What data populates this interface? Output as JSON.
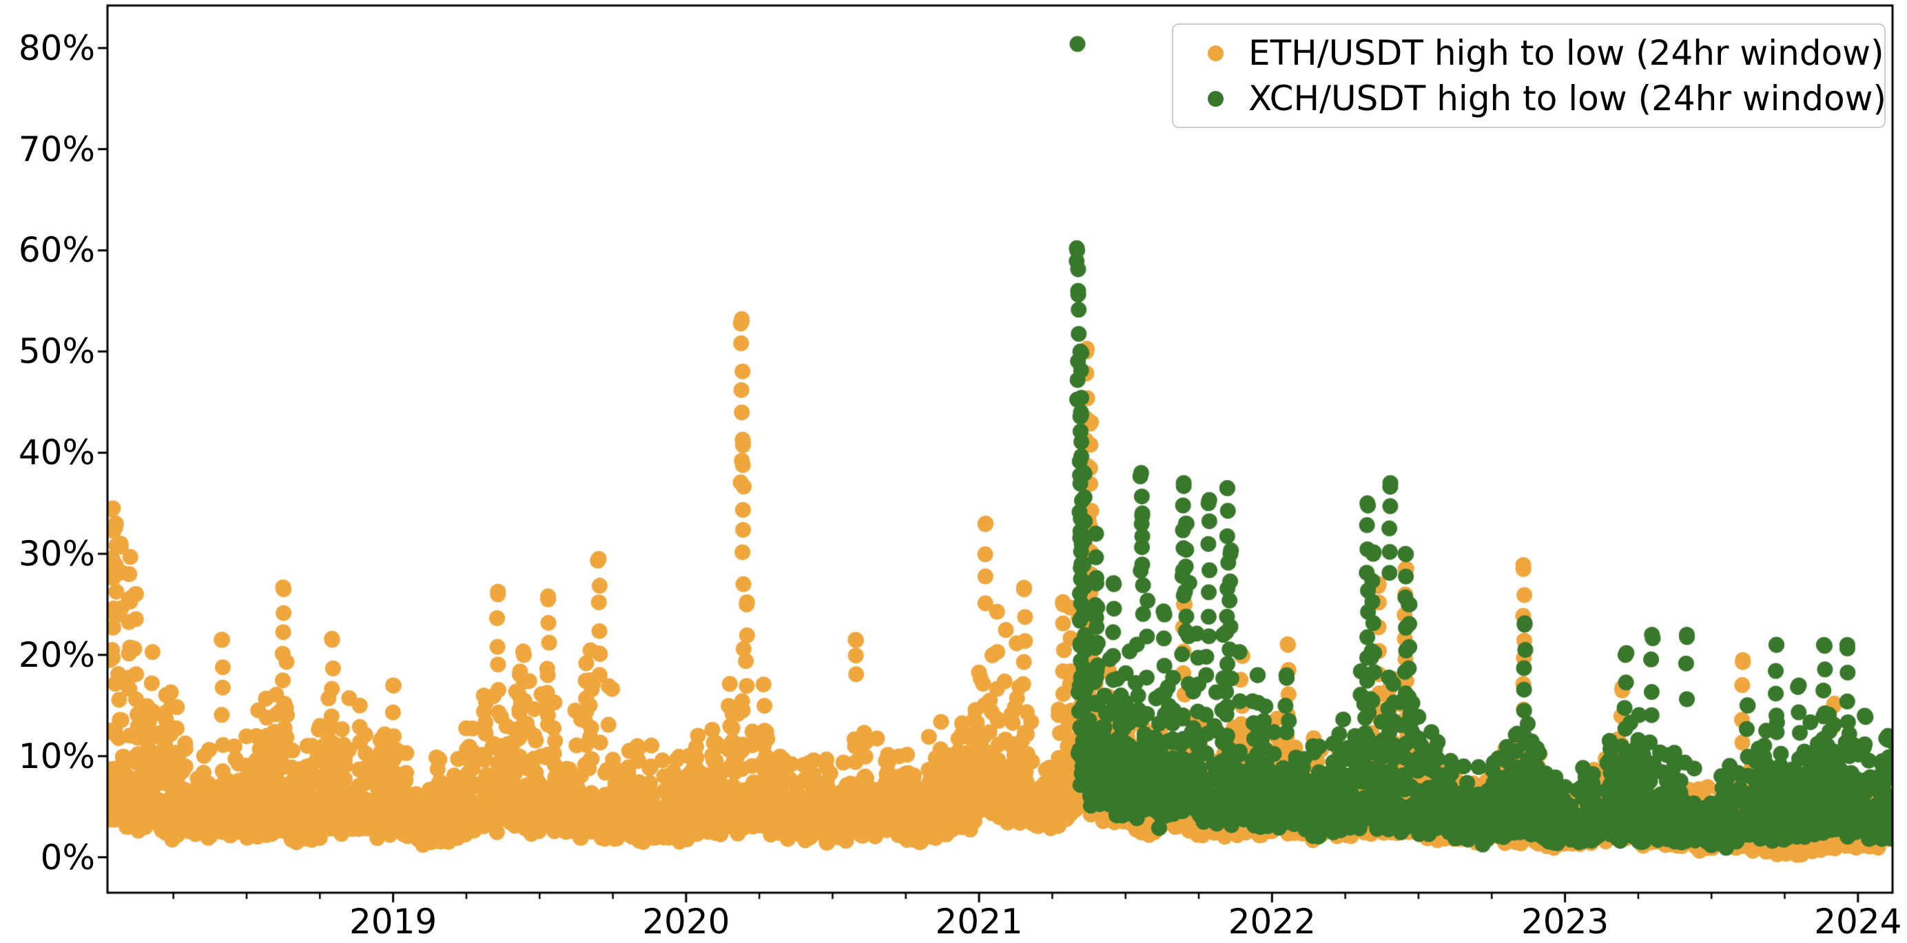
{
  "figure": {
    "background": "#ffffff",
    "axis_color": "#000000",
    "legend_border_color": "#cccccc"
  },
  "chart_data": {
    "type": "scatter",
    "title": "",
    "xlabel": "",
    "ylabel": "",
    "grid": false,
    "x_axis": {
      "range_years": [
        2018.025,
        2024.118
      ],
      "tick_years": [
        2019,
        2020,
        2021,
        2022,
        2023,
        2024
      ],
      "tick_labels": [
        "2019",
        "2020",
        "2021",
        "2022",
        "2023",
        "2024"
      ],
      "minor_tick_interval_years": 0.25
    },
    "y_axis": {
      "range_pct": [
        -3.5,
        84.2
      ],
      "tick_values": [
        0,
        10,
        20,
        30,
        40,
        50,
        60,
        70,
        80
      ],
      "tick_labels": [
        "0%",
        "10%",
        "20%",
        "30%",
        "40%",
        "50%",
        "60%",
        "70%",
        "80%"
      ]
    },
    "legend": {
      "position": "upper right",
      "entries": [
        {
          "label": "ETH/USDT high to low (24hr window)",
          "color": "#EFA63C"
        },
        {
          "label": "XCH/USDT high to low (24hr window)",
          "color": "#38782B"
        }
      ]
    },
    "series": [
      {
        "name": "ETH/USDT high to low (24hr window)",
        "color": "#EFA63C",
        "marker_radius_px": 11.5,
        "start_year": 2018.03,
        "end_year": 2024.115,
        "band_envelope": [
          [
            2018.03,
            8,
            30
          ],
          [
            2018.08,
            6,
            33
          ],
          [
            2018.13,
            5,
            30
          ],
          [
            2018.18,
            5,
            21
          ],
          [
            2018.25,
            4,
            16
          ],
          [
            2018.32,
            4,
            13
          ],
          [
            2018.4,
            4,
            17
          ],
          [
            2018.48,
            4,
            12
          ],
          [
            2018.55,
            4,
            16
          ],
          [
            2018.62,
            4,
            24
          ],
          [
            2018.68,
            3,
            9
          ],
          [
            2018.75,
            3,
            14
          ],
          [
            2018.8,
            4,
            19
          ],
          [
            2018.88,
            5,
            17
          ],
          [
            2018.95,
            4,
            13
          ],
          [
            2019.02,
            4,
            14
          ],
          [
            2019.1,
            3,
            11
          ],
          [
            2019.18,
            3,
            9
          ],
          [
            2019.27,
            4,
            14
          ],
          [
            2019.36,
            5,
            23
          ],
          [
            2019.44,
            5,
            19
          ],
          [
            2019.52,
            5,
            23
          ],
          [
            2019.6,
            4,
            13
          ],
          [
            2019.68,
            4,
            24
          ],
          [
            2019.73,
            4,
            18
          ],
          [
            2019.8,
            3,
            11
          ],
          [
            2019.88,
            3,
            12
          ],
          [
            2019.96,
            3,
            9
          ],
          [
            2020.04,
            4,
            13
          ],
          [
            2020.12,
            4,
            12
          ],
          [
            2020.18,
            5,
            30
          ],
          [
            2020.24,
            5,
            20
          ],
          [
            2020.32,
            4,
            13
          ],
          [
            2020.42,
            3,
            9
          ],
          [
            2020.52,
            3,
            12
          ],
          [
            2020.6,
            4,
            13
          ],
          [
            2020.7,
            4,
            15
          ],
          [
            2020.8,
            3,
            10
          ],
          [
            2020.88,
            4,
            14
          ],
          [
            2020.96,
            5,
            14
          ],
          [
            2021.02,
            7,
            26
          ],
          [
            2021.1,
            7,
            22
          ],
          [
            2021.16,
            6,
            21
          ],
          [
            2021.24,
            5,
            16
          ],
          [
            2021.3,
            6,
            20
          ],
          [
            2021.36,
            9,
            38
          ],
          [
            2021.42,
            7,
            22
          ],
          [
            2021.5,
            5,
            16
          ],
          [
            2021.58,
            4,
            13
          ],
          [
            2021.65,
            5,
            14
          ],
          [
            2021.7,
            5,
            19
          ],
          [
            2021.78,
            4,
            13
          ],
          [
            2021.86,
            4,
            14
          ],
          [
            2021.94,
            4,
            13
          ],
          [
            2022.02,
            5,
            16
          ],
          [
            2022.1,
            4,
            14
          ],
          [
            2022.18,
            4,
            11
          ],
          [
            2022.26,
            4,
            12
          ],
          [
            2022.34,
            5,
            18
          ],
          [
            2022.42,
            5,
            20
          ],
          [
            2022.5,
            4,
            12
          ],
          [
            2022.58,
            3,
            10
          ],
          [
            2022.66,
            3,
            8
          ],
          [
            2022.74,
            3,
            9
          ],
          [
            2022.82,
            3,
            12
          ],
          [
            2022.88,
            3,
            14
          ],
          [
            2022.96,
            2,
            7
          ],
          [
            2023.04,
            2.5,
            8
          ],
          [
            2023.12,
            2.5,
            9
          ],
          [
            2023.2,
            3,
            13
          ],
          [
            2023.28,
            2.5,
            9
          ],
          [
            2023.36,
            2.5,
            8
          ],
          [
            2023.46,
            2,
            7
          ],
          [
            2023.54,
            2,
            7
          ],
          [
            2023.61,
            2,
            13
          ],
          [
            2023.68,
            1.5,
            6
          ],
          [
            2023.76,
            1.2,
            6
          ],
          [
            2023.84,
            1.5,
            8
          ],
          [
            2023.92,
            2,
            10
          ],
          [
            2024.0,
            2,
            8
          ],
          [
            2024.06,
            2.5,
            9
          ],
          [
            2024.11,
            3,
            10
          ]
        ],
        "spike_columns": [
          [
            2018.04,
            20,
            34.5
          ],
          [
            2018.055,
            24,
            33
          ],
          [
            2018.07,
            25,
            31
          ],
          [
            2018.1,
            18,
            28
          ],
          [
            2018.12,
            16,
            26
          ],
          [
            2018.42,
            14,
            21.5
          ],
          [
            2018.63,
            13,
            26.5
          ],
          [
            2018.79,
            11,
            21.5
          ],
          [
            2019.0,
            10,
            17
          ],
          [
            2019.36,
            14,
            26
          ],
          [
            2019.45,
            13,
            20
          ],
          [
            2019.53,
            14,
            25.5
          ],
          [
            2019.7,
            18,
            29.5
          ],
          [
            2020.19,
            37,
            53
          ],
          [
            2020.195,
            30,
            41
          ],
          [
            2020.21,
            17,
            25
          ],
          [
            2020.58,
            18,
            21.5
          ],
          [
            2021.02,
            25,
            33
          ],
          [
            2021.15,
            17,
            26.5
          ],
          [
            2021.29,
            16,
            25
          ],
          [
            2021.37,
            28,
            50
          ],
          [
            2021.38,
            20,
            43
          ],
          [
            2021.7,
            14,
            25
          ],
          [
            2021.9,
            12,
            20
          ],
          [
            2022.05,
            14,
            21
          ],
          [
            2022.36,
            16,
            27
          ],
          [
            2022.46,
            15,
            28.5
          ],
          [
            2022.86,
            15,
            28.5
          ],
          [
            2023.2,
            9,
            16.5
          ],
          [
            2023.61,
            11,
            19.5
          ],
          [
            2023.92,
            8,
            15
          ]
        ],
        "notable_points": [
          [
            2020.19,
            53.2
          ]
        ]
      },
      {
        "name": "XCH/USDT high to low (24hr window)",
        "color": "#38782B",
        "marker_radius_px": 11.5,
        "start_year": 2021.336,
        "end_year": 2024.115,
        "band_envelope": [
          [
            2021.34,
            12,
            42
          ],
          [
            2021.38,
            9,
            30
          ],
          [
            2021.44,
            8,
            24
          ],
          [
            2021.5,
            7,
            20
          ],
          [
            2021.56,
            7,
            26
          ],
          [
            2021.62,
            6,
            20
          ],
          [
            2021.7,
            7,
            28
          ],
          [
            2021.78,
            6,
            22
          ],
          [
            2021.86,
            6,
            24
          ],
          [
            2021.94,
            5,
            16
          ],
          [
            2022.02,
            5,
            15
          ],
          [
            2022.1,
            5,
            13
          ],
          [
            2022.18,
            4,
            11
          ],
          [
            2022.26,
            5,
            14
          ],
          [
            2022.34,
            5,
            24
          ],
          [
            2022.42,
            5,
            20
          ],
          [
            2022.5,
            4,
            14
          ],
          [
            2022.58,
            4,
            11
          ],
          [
            2022.66,
            3,
            9
          ],
          [
            2022.74,
            3,
            10
          ],
          [
            2022.82,
            4,
            13
          ],
          [
            2022.88,
            4,
            16
          ],
          [
            2022.96,
            3,
            8
          ],
          [
            2023.04,
            3,
            9
          ],
          [
            2023.12,
            3,
            10
          ],
          [
            2023.2,
            3.5,
            14
          ],
          [
            2023.28,
            3.5,
            15
          ],
          [
            2023.36,
            3,
            12
          ],
          [
            2023.46,
            3,
            10
          ],
          [
            2023.54,
            2.5,
            8
          ],
          [
            2023.62,
            3,
            10
          ],
          [
            2023.72,
            3.5,
            14
          ],
          [
            2023.8,
            3,
            11
          ],
          [
            2023.88,
            4,
            15
          ],
          [
            2023.96,
            4,
            14
          ],
          [
            2024.04,
            3.5,
            11
          ],
          [
            2024.11,
            3.5,
            12
          ]
        ],
        "spike_columns": [
          [
            2021.338,
            58.5,
            60
          ],
          [
            2021.342,
            45,
            56
          ],
          [
            2021.347,
            30,
            50
          ],
          [
            2021.352,
            25,
            44
          ],
          [
            2021.36,
            22,
            38
          ],
          [
            2021.4,
            18,
            32
          ],
          [
            2021.46,
            15,
            27
          ],
          [
            2021.55,
            28,
            38
          ],
          [
            2021.56,
            24,
            34
          ],
          [
            2021.63,
            14,
            24
          ],
          [
            2021.7,
            26,
            37
          ],
          [
            2021.71,
            22,
            33
          ],
          [
            2021.78,
            22,
            35
          ],
          [
            2021.85,
            24,
            36.5
          ],
          [
            2021.86,
            18,
            30
          ],
          [
            2021.95,
            10,
            18
          ],
          [
            2022.05,
            12,
            18
          ],
          [
            2022.33,
            22,
            35
          ],
          [
            2022.35,
            18,
            30
          ],
          [
            2022.4,
            28,
            37
          ],
          [
            2022.46,
            16,
            30
          ],
          [
            2022.47,
            14,
            25
          ],
          [
            2022.86,
            12,
            23
          ],
          [
            2023.21,
            10,
            20
          ],
          [
            2023.3,
            14,
            22
          ],
          [
            2023.42,
            16,
            22
          ],
          [
            2023.62,
            8,
            15
          ],
          [
            2023.72,
            12,
            21
          ],
          [
            2023.8,
            10,
            17
          ],
          [
            2023.88,
            12,
            21
          ],
          [
            2023.96,
            13,
            21
          ],
          [
            2024.02,
            8,
            14
          ],
          [
            2024.1,
            8,
            12
          ]
        ],
        "notable_points": [
          [
            2021.336,
            80.4
          ]
        ]
      }
    ]
  }
}
